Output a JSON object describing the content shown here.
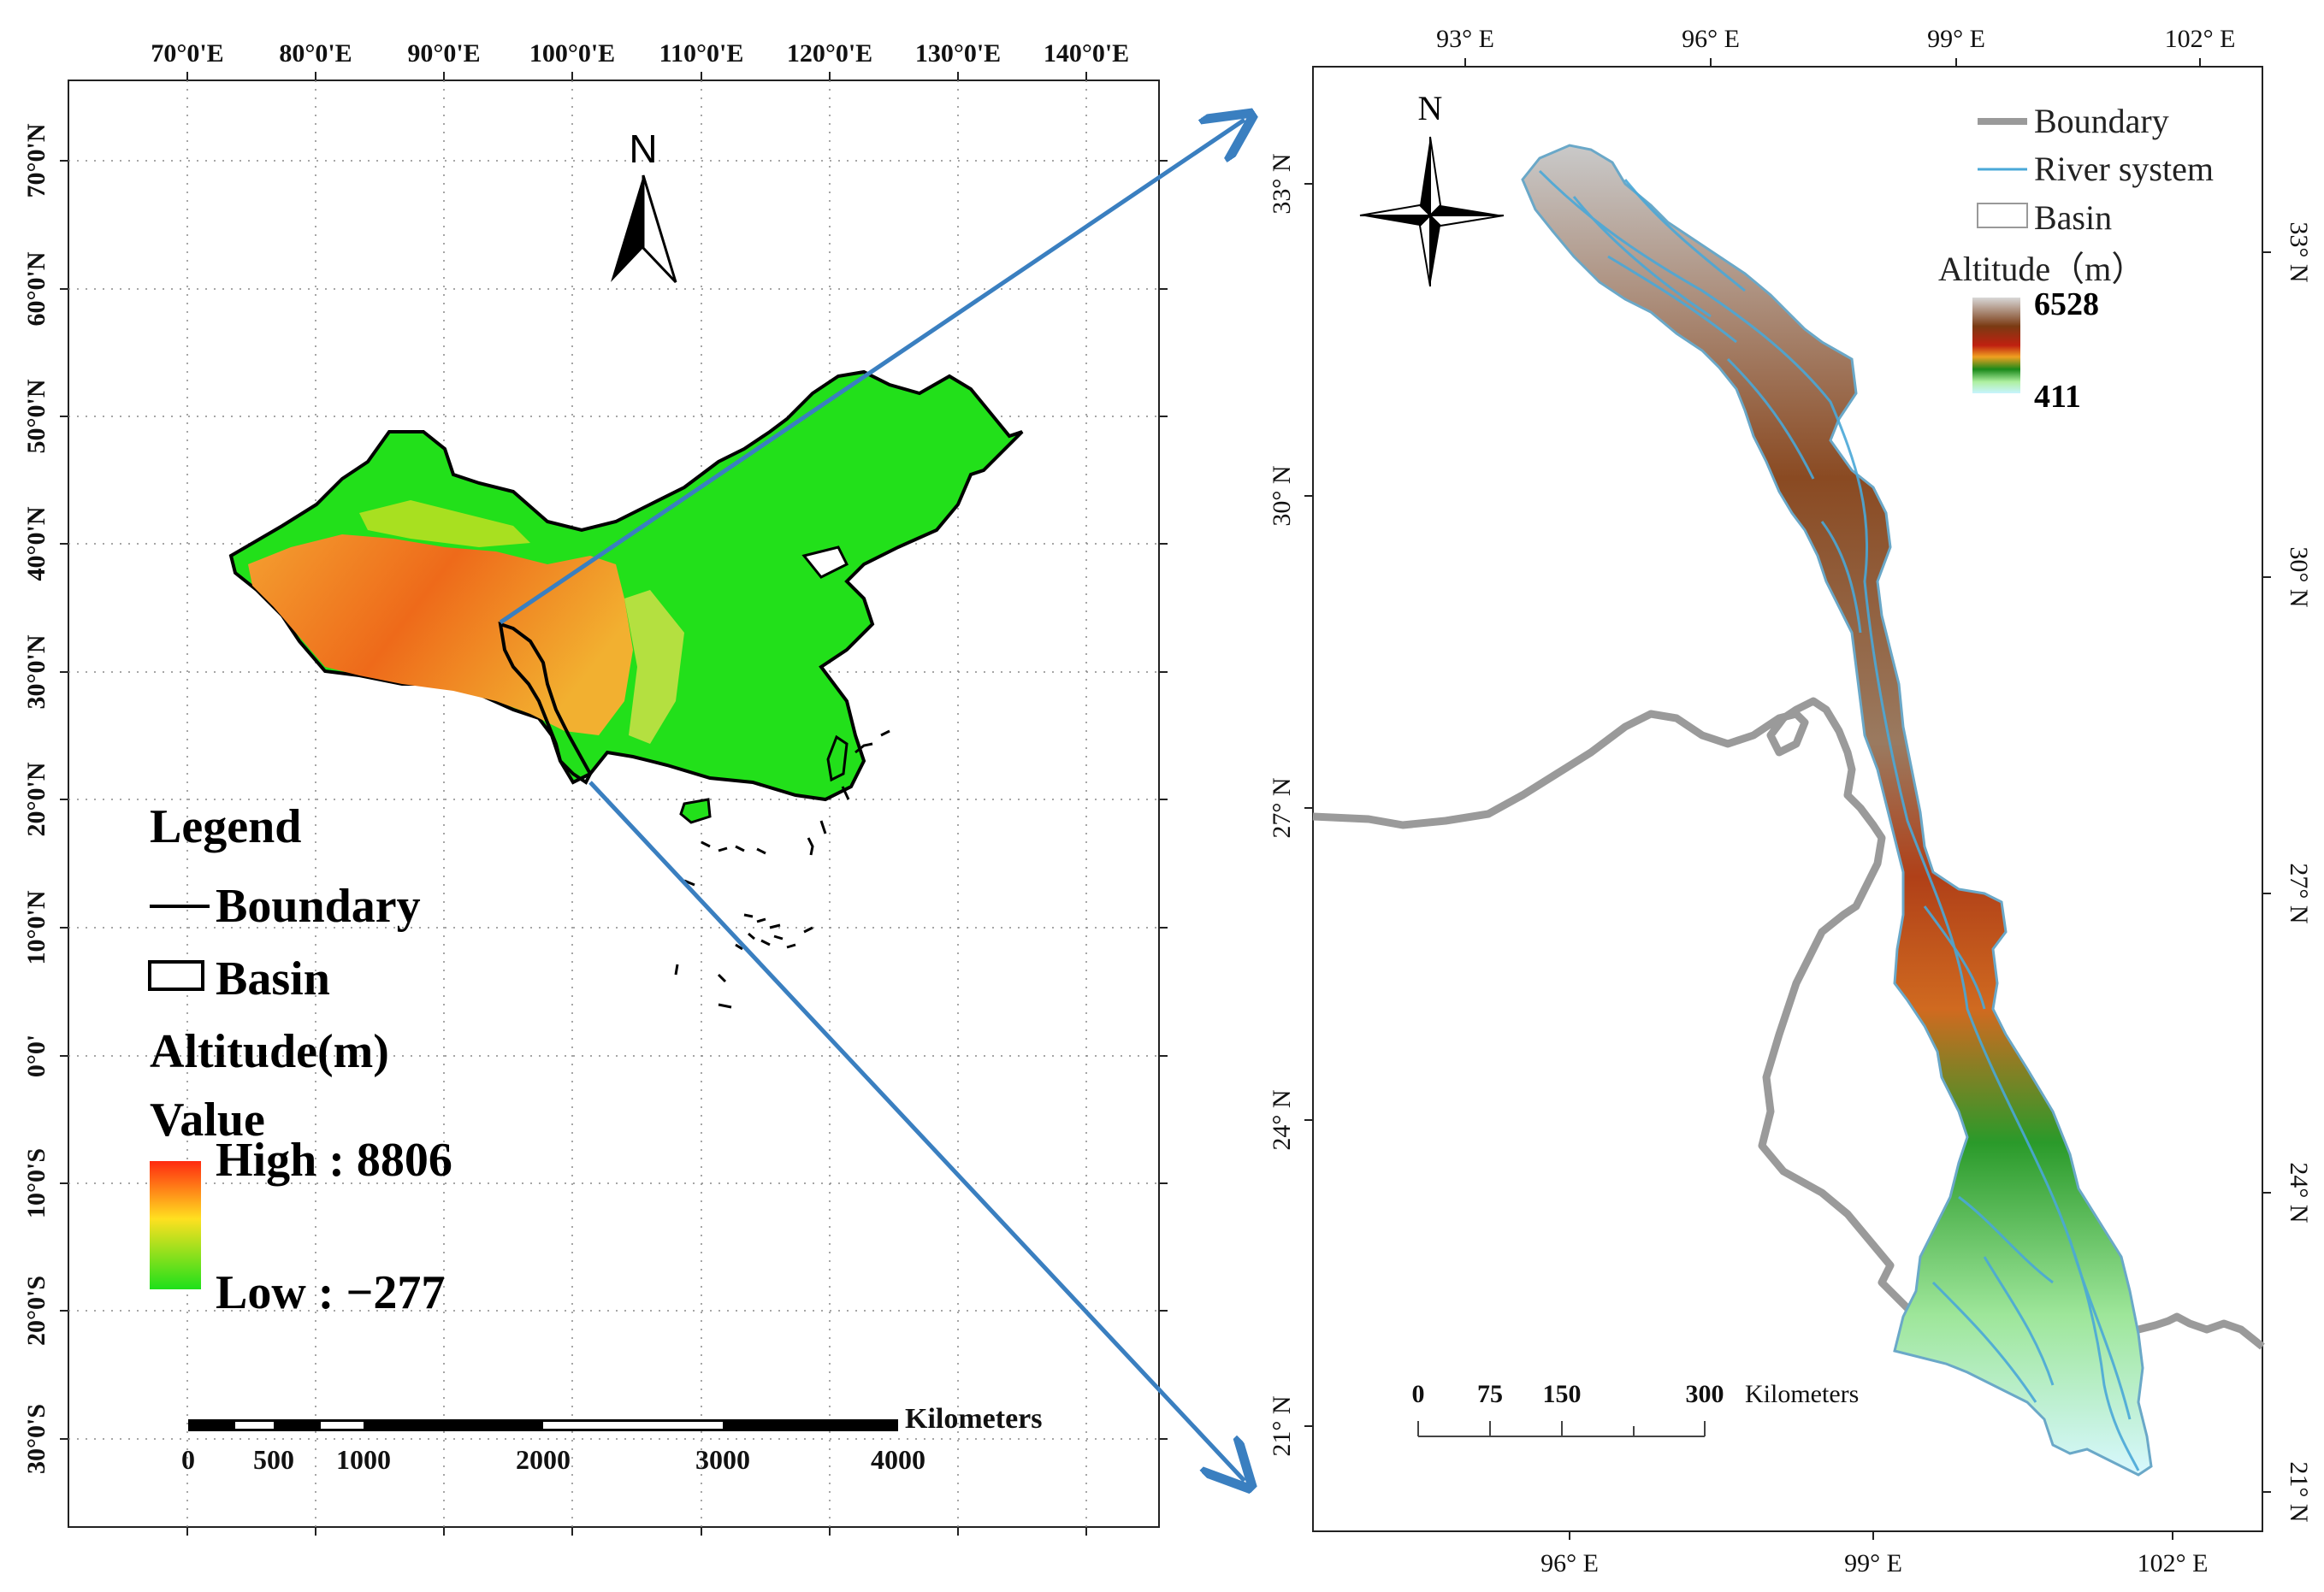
{
  "left_map": {
    "lon_ticks": [
      "70°0'E",
      "80°0'E",
      "90°0'E",
      "100°0'E",
      "110°0'E",
      "120°0'E",
      "130°0'E",
      "140°0'E"
    ],
    "lat_ticks": [
      "70°0'N",
      "60°0'N",
      "50°0'N",
      "40°0'N",
      "30°0'N",
      "20°0'N",
      "10°0'N",
      "0°0'",
      "10°0'S",
      "20°0'S",
      "30°0'S"
    ],
    "north_label": "N",
    "legend": {
      "title": "Legend",
      "boundary": "Boundary",
      "basin": "Basin",
      "altitude": "Altitude(m)",
      "value": "Value",
      "high": "High : 8806",
      "low": "Low : −277"
    },
    "scale": {
      "unit": "Kilometers",
      "labels": [
        "0",
        "500",
        "1000",
        "2000",
        "3000",
        "4000"
      ]
    }
  },
  "right_map": {
    "lon_ticks_top": [
      "93° E",
      "96° E",
      "99° E",
      "102° E"
    ],
    "lon_ticks_bottom": [
      "96° E",
      "99° E",
      "102° E"
    ],
    "lat_ticks_left": [
      "33° N",
      "30° N",
      "27° N",
      "24° N",
      "21° N"
    ],
    "lat_ticks_right": [
      "33° N",
      "30° N",
      "27° N",
      "24° N",
      "21° N"
    ],
    "north_label": "N",
    "legend": {
      "boundary": "Boundary",
      "river": "River system",
      "basin": "Basin",
      "altitude": "Altitude（m）",
      "high": "6528",
      "low": "411"
    },
    "scale": {
      "unit": "Kilometers",
      "labels": [
        "0",
        "75",
        "150",
        "300"
      ]
    }
  },
  "colors": {
    "china_green": "#22e01a",
    "plateau_orange": "#f07a1e",
    "arrow_blue": "#3a7fc0",
    "river_blue": "#4aa8d8",
    "boundary_gray": "#9a9a9a"
  }
}
